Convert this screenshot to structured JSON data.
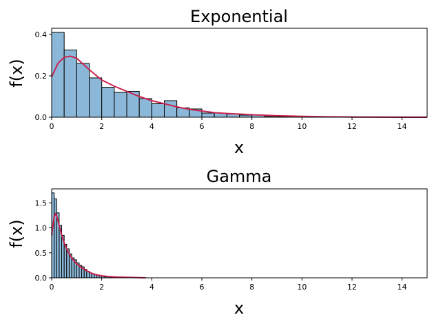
{
  "chart_data": [
    {
      "type": "histogram",
      "title": "Exponential",
      "xlabel": "x",
      "ylabel": "f(x)",
      "xlim": [
        0,
        15
      ],
      "ylim": [
        0,
        0.43
      ],
      "xticks": [
        "0",
        "2",
        "4",
        "6",
        "8",
        "10",
        "12",
        "14"
      ],
      "xtick_values": [
        0,
        2,
        4,
        6,
        8,
        10,
        12,
        14
      ],
      "yticks": [
        "0.0",
        "0.2",
        "0.4"
      ],
      "ytick_values": [
        0,
        0.2,
        0.4
      ],
      "bin_width": 0.5,
      "bins": [
        {
          "x0": 0.0,
          "height": 0.41
        },
        {
          "x0": 0.5,
          "height": 0.325
        },
        {
          "x0": 1.0,
          "height": 0.26
        },
        {
          "x0": 1.5,
          "height": 0.19
        },
        {
          "x0": 2.0,
          "height": 0.145
        },
        {
          "x0": 2.5,
          "height": 0.12
        },
        {
          "x0": 3.0,
          "height": 0.125
        },
        {
          "x0": 3.5,
          "height": 0.09
        },
        {
          "x0": 4.0,
          "height": 0.065
        },
        {
          "x0": 4.5,
          "height": 0.08
        },
        {
          "x0": 5.0,
          "height": 0.045
        },
        {
          "x0": 5.5,
          "height": 0.04
        },
        {
          "x0": 6.0,
          "height": 0.02
        },
        {
          "x0": 6.5,
          "height": 0.02
        },
        {
          "x0": 7.0,
          "height": 0.015
        },
        {
          "x0": 7.5,
          "height": 0.01
        },
        {
          "x0": 8.0,
          "height": 0.01
        },
        {
          "x0": 8.5,
          "height": 0.004
        },
        {
          "x0": 9.0,
          "height": 0.003
        },
        {
          "x0": 9.5,
          "height": 0.002
        },
        {
          "x0": 10.0,
          "height": 0.002
        },
        {
          "x0": 10.5,
          "height": 0.001
        },
        {
          "x0": 11.0,
          "height": 0.001
        },
        {
          "x0": 11.5,
          "height": 0.001
        },
        {
          "x0": 12.0,
          "height": 0.0
        },
        {
          "x0": 12.5,
          "height": 0.0
        },
        {
          "x0": 13.0,
          "height": 0.0
        },
        {
          "x0": 13.5,
          "height": 0.0
        },
        {
          "x0": 14.0,
          "height": 0.0
        },
        {
          "x0": 14.5,
          "height": 0.0
        }
      ],
      "kde": {
        "x": [
          0,
          0.25,
          0.5,
          0.75,
          1.0,
          1.5,
          2.0,
          2.5,
          3.0,
          3.5,
          4.0,
          4.5,
          5.0,
          5.5,
          6.0,
          6.5,
          7.0,
          8.0,
          9.0,
          10.0,
          11.0,
          12.0,
          13.0,
          14.0,
          15.0
        ],
        "y": [
          0.195,
          0.26,
          0.29,
          0.295,
          0.285,
          0.23,
          0.18,
          0.15,
          0.125,
          0.1,
          0.08,
          0.065,
          0.05,
          0.038,
          0.03,
          0.022,
          0.018,
          0.012,
          0.007,
          0.004,
          0.002,
          0.001,
          0.0005,
          0.0002,
          0.0
        ]
      },
      "bar_color": "#8bb8d9",
      "kde_color": "#c8234f",
      "grid": false
    },
    {
      "type": "histogram",
      "title": "Gamma",
      "xlabel": "x",
      "ylabel": "f(x)",
      "xlim": [
        0,
        15
      ],
      "ylim": [
        0,
        1.78
      ],
      "xticks": [
        "0",
        "2",
        "4",
        "6",
        "8",
        "10",
        "12",
        "14"
      ],
      "xtick_values": [
        0,
        2,
        4,
        6,
        8,
        10,
        12,
        14
      ],
      "yticks": [
        "0.0",
        "0.5",
        "1.0",
        "1.5"
      ],
      "ytick_values": [
        0,
        0.5,
        1.0,
        1.5
      ],
      "bin_width": 0.1,
      "bins": [
        {
          "x0": 0.0,
          "height": 1.7
        },
        {
          "x0": 0.1,
          "height": 1.58
        },
        {
          "x0": 0.2,
          "height": 1.3
        },
        {
          "x0": 0.3,
          "height": 1.05
        },
        {
          "x0": 0.4,
          "height": 0.85
        },
        {
          "x0": 0.5,
          "height": 0.67
        },
        {
          "x0": 0.6,
          "height": 0.58
        },
        {
          "x0": 0.7,
          "height": 0.48
        },
        {
          "x0": 0.8,
          "height": 0.4
        },
        {
          "x0": 0.9,
          "height": 0.36
        },
        {
          "x0": 1.0,
          "height": 0.3
        },
        {
          "x0": 1.1,
          "height": 0.25
        },
        {
          "x0": 1.2,
          "height": 0.22
        },
        {
          "x0": 1.3,
          "height": 0.17
        },
        {
          "x0": 1.4,
          "height": 0.13
        },
        {
          "x0": 1.5,
          "height": 0.1
        },
        {
          "x0": 1.6,
          "height": 0.08
        },
        {
          "x0": 1.7,
          "height": 0.07
        },
        {
          "x0": 1.8,
          "height": 0.05
        },
        {
          "x0": 1.9,
          "height": 0.04
        },
        {
          "x0": 2.0,
          "height": 0.03
        },
        {
          "x0": 2.1,
          "height": 0.02
        },
        {
          "x0": 2.2,
          "height": 0.02
        },
        {
          "x0": 2.3,
          "height": 0.015
        },
        {
          "x0": 2.4,
          "height": 0.01
        },
        {
          "x0": 2.5,
          "height": 0.01
        },
        {
          "x0": 2.6,
          "height": 0.008
        },
        {
          "x0": 2.7,
          "height": 0.006
        },
        {
          "x0": 2.8,
          "height": 0.005
        },
        {
          "x0": 2.9,
          "height": 0.004
        },
        {
          "x0": 3.0,
          "height": 0.004
        },
        {
          "x0": 3.1,
          "height": 0.003
        },
        {
          "x0": 3.2,
          "height": 0.003
        },
        {
          "x0": 3.3,
          "height": 0.002
        },
        {
          "x0": 3.4,
          "height": 0.002
        },
        {
          "x0": 3.5,
          "height": 0.001
        },
        {
          "x0": 3.6,
          "height": 0.001
        },
        {
          "x0": 3.7,
          "height": 0.001
        }
      ],
      "kde": {
        "x": [
          0,
          0.05,
          0.1,
          0.15,
          0.2,
          0.25,
          0.3,
          0.4,
          0.5,
          0.6,
          0.7,
          0.8,
          1.0,
          1.2,
          1.4,
          1.6,
          1.8,
          2.0,
          2.3,
          2.6,
          3.0,
          3.4,
          3.75
        ],
        "y": [
          0.85,
          1.05,
          1.22,
          1.28,
          1.24,
          1.15,
          1.05,
          0.86,
          0.7,
          0.58,
          0.48,
          0.4,
          0.28,
          0.2,
          0.14,
          0.09,
          0.06,
          0.04,
          0.025,
          0.015,
          0.01,
          0.005,
          0.0
        ]
      },
      "bar_color": "#8bb8d9",
      "kde_color": "#c8234f",
      "grid": false
    }
  ]
}
